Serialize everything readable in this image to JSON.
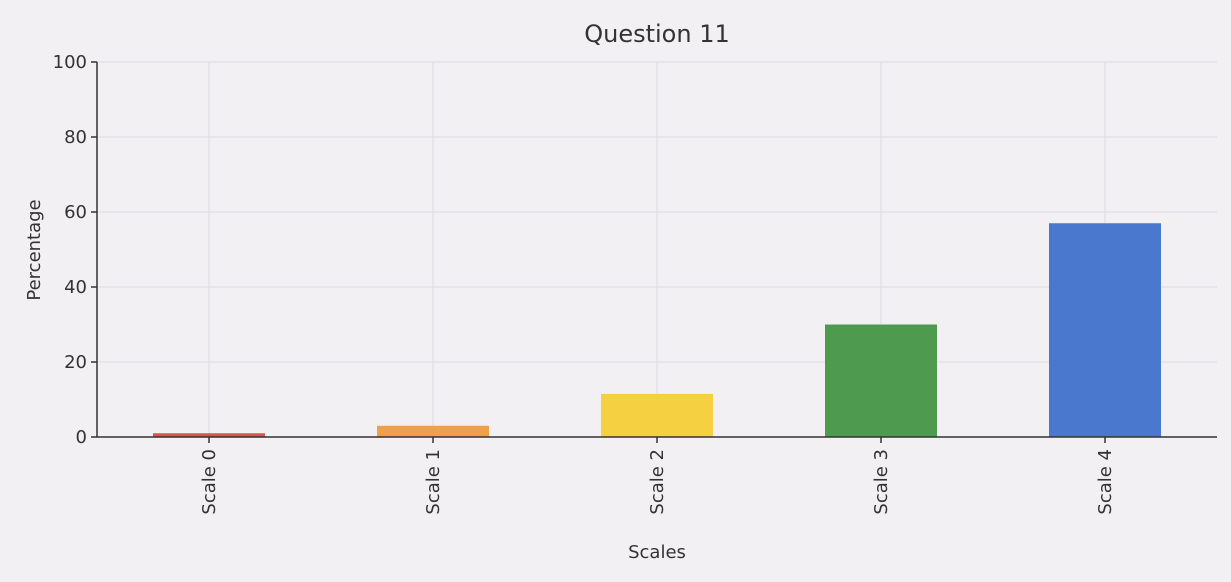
{
  "chart_data": {
    "type": "bar",
    "title": "Question 11",
    "x_label": "Scales",
    "y_label": "Percentage",
    "categories": [
      "Scale 0",
      "Scale 1",
      "Scale 2",
      "Scale 3",
      "Scale 4"
    ],
    "values": [
      1,
      3,
      11.5,
      30,
      57
    ],
    "colors": [
      "#d9534f",
      "#f0a04b",
      "#f5d142",
      "#4e9a4e",
      "#4a78cf"
    ],
    "ylim": [
      0,
      100
    ],
    "yticks": [
      0,
      20,
      40,
      60,
      80,
      100
    ],
    "grid": true
  }
}
